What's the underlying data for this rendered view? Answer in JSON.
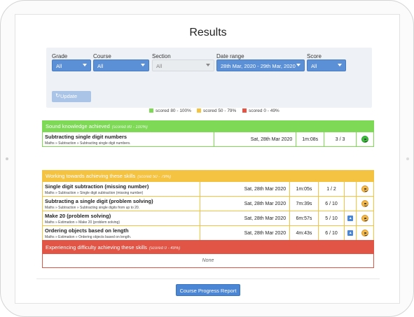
{
  "page": {
    "title": "Results"
  },
  "filters": {
    "grade": {
      "label": "Grade",
      "value": "All"
    },
    "course": {
      "label": "Course",
      "value": "All"
    },
    "section": {
      "label": "Section",
      "value": "All"
    },
    "date_range": {
      "label": "Date range",
      "value": "28th Mar, 2020 - 29th Mar, 2020"
    },
    "score": {
      "label": "Score",
      "value": "All"
    },
    "update_label": "Update"
  },
  "legend": [
    {
      "label": "scored 80 - 100%",
      "color": "#7ed957"
    },
    {
      "label": "scored 50 - 79%",
      "color": "#f5c342"
    },
    {
      "label": "scored 0 - 49%",
      "color": "#e05545"
    }
  ],
  "sections": {
    "achieved": {
      "title": "Sound knowledge achieved",
      "range": "(scored 80 - 100%)",
      "color": "#7ed957",
      "rows": [
        {
          "skill": "Subtracting single digit numbers",
          "path": "Maths » Subtraction » Subtracting single digit numbers.",
          "date": "Sat, 28th Mar 2020",
          "time": "1m:08s",
          "score": "3 / 3",
          "hint": false,
          "face": "green"
        }
      ]
    },
    "working": {
      "title": "Working towards achieving these skills",
      "range": "(scored 50 - 79%)",
      "color": "#f5c342",
      "rows": [
        {
          "skill": "Single digit subtraction (missing number)",
          "path": "Maths » Subtraction » Single digit subtraction (missing number)",
          "date": "Sat, 28th Mar 2020",
          "time": "1m:05s",
          "score": "1 / 2",
          "hint": false,
          "face": "orange"
        },
        {
          "skill": "Subtracting a single digit (problem solving)",
          "path": "Maths » Subtraction » Subtracting single digits from up to 20.",
          "date": "Sat, 28th Mar 2020",
          "time": "7m:39s",
          "score": "6 / 10",
          "hint": false,
          "face": "orange"
        },
        {
          "skill": "Make 20 (problem solving)",
          "path": "Maths » Estimation » Make 20 (problem solving)",
          "date": "Sat, 28th Mar 2020",
          "time": "6m:57s",
          "score": "5 / 10",
          "hint": true,
          "face": "orange"
        },
        {
          "skill": "Ordering objects based on length",
          "path": "Maths » Estimation » Ordering objects based on length.",
          "date": "Sat, 28th Mar 2020",
          "time": "4m:43s",
          "score": "6 / 10",
          "hint": true,
          "face": "orange"
        }
      ]
    },
    "difficulty": {
      "title": "Experiencing difficulty achieving these skills",
      "range": "(scored 0 - 49%)",
      "color": "#e05545",
      "empty_text": "None"
    }
  },
  "footer": {
    "report_button": "Course Progress Report"
  }
}
